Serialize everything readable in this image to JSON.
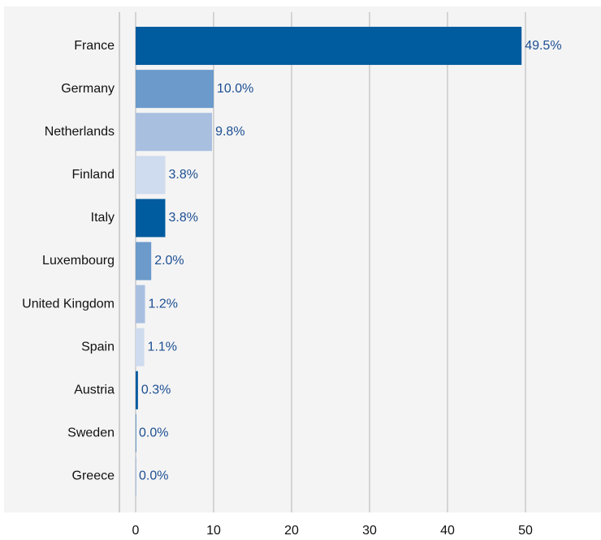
{
  "chart_data": {
    "type": "barh",
    "categories": [
      "France",
      "Germany",
      "Netherlands",
      "Finland",
      "Italy",
      "Luxembourg",
      "United Kingdom",
      "Spain",
      "Austria",
      "Sweden",
      "Greece"
    ],
    "values": [
      49.5,
      10.0,
      9.8,
      3.8,
      3.8,
      2.0,
      1.2,
      1.1,
      0.3,
      0.0,
      0.0
    ],
    "value_labels": [
      "49.5%",
      "10.0%",
      "9.8%",
      "3.8%",
      "3.8%",
      "2.0%",
      "1.2%",
      "1.1%",
      "0.3%",
      "0.0%",
      "0.0%"
    ],
    "colors": [
      "#005b9f",
      "#6b9acb",
      "#a8bfe0",
      "#cfdbee",
      "#005b9f",
      "#6b9acb",
      "#a8bfe0",
      "#cfdbee",
      "#005b9f",
      "#6b9acb",
      "#a8bfe0"
    ],
    "xlim": [
      0,
      50
    ],
    "xticks": [
      0,
      10,
      20,
      30,
      40,
      50
    ],
    "grid": true
  }
}
